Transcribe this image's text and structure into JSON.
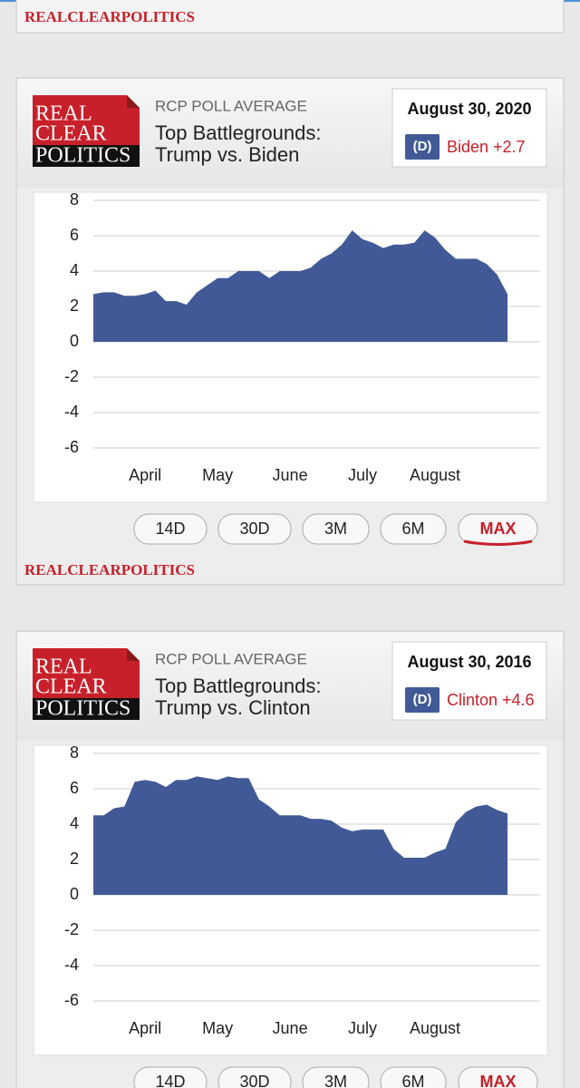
{
  "page": {
    "brand_top": "REALCLEARPOLITICS"
  },
  "chart_data": [
    {
      "type": "area",
      "logo": [
        "REAL",
        "CLEAR",
        "POLITICS"
      ],
      "kicker": "RCP POLL AVERAGE",
      "title": [
        "Top Battlegrounds:",
        "Trump vs. Biden"
      ],
      "date": "August 30, 2020",
      "party": "(D)",
      "leader": "Biden +2.7",
      "color": "#415a97",
      "categories": [
        null,
        null,
        null,
        null,
        null,
        "April",
        null,
        null,
        null,
        null,
        null,
        null,
        "May",
        null,
        null,
        null,
        null,
        null,
        null,
        "June",
        null,
        null,
        null,
        null,
        null,
        null,
        "July",
        null,
        null,
        null,
        null,
        null,
        null,
        "August",
        null,
        null,
        null,
        null,
        null,
        null,
        null
      ],
      "values": [
        2.7,
        2.8,
        2.8,
        2.6,
        2.6,
        2.7,
        2.9,
        2.3,
        2.3,
        2.1,
        2.8,
        3.2,
        3.6,
        3.6,
        4.0,
        4.0,
        4.0,
        3.6,
        4.0,
        4.0,
        4.0,
        4.2,
        4.7,
        5.0,
        5.5,
        6.3,
        5.8,
        5.6,
        5.3,
        5.5,
        5.5,
        5.6,
        6.3,
        5.9,
        5.2,
        4.7,
        4.7,
        4.7,
        4.4,
        3.8,
        2.7
      ],
      "ylim": [
        -7,
        8
      ],
      "yticks": [
        8,
        6,
        4,
        2,
        0,
        -2,
        -4,
        -6
      ],
      "grid": true,
      "buttons": [
        "14D",
        "30D",
        "3M",
        "6M",
        "MAX"
      ],
      "footer": "REALCLEARPOLITICS"
    },
    {
      "type": "area",
      "logo": [
        "REAL",
        "CLEAR",
        "POLITICS"
      ],
      "kicker": "RCP POLL AVERAGE",
      "title": [
        "Top Battlegrounds:",
        "Trump vs. Clinton"
      ],
      "date": "August 30, 2016",
      "party": "(D)",
      "leader": "Clinton +4.6",
      "color": "#415a97",
      "categories": [
        null,
        null,
        null,
        null,
        null,
        "April",
        null,
        null,
        null,
        null,
        null,
        null,
        "May",
        null,
        null,
        null,
        null,
        null,
        null,
        "June",
        null,
        null,
        null,
        null,
        null,
        null,
        "July",
        null,
        null,
        null,
        null,
        null,
        null,
        "August",
        null,
        null,
        null,
        null,
        null,
        null,
        null
      ],
      "values": [
        4.5,
        4.5,
        4.9,
        5.0,
        6.4,
        6.5,
        6.4,
        6.1,
        6.5,
        6.5,
        6.7,
        6.6,
        6.5,
        6.7,
        6.6,
        6.6,
        5.4,
        5.0,
        4.5,
        4.5,
        4.5,
        4.3,
        4.3,
        4.2,
        3.8,
        3.6,
        3.7,
        3.7,
        3.7,
        2.6,
        2.1,
        2.1,
        2.1,
        2.4,
        2.6,
        4.1,
        4.7,
        5.0,
        5.1,
        4.8,
        4.6
      ],
      "ylim": [
        -7,
        8
      ],
      "yticks": [
        8,
        6,
        4,
        2,
        0,
        -2,
        -4,
        -6
      ],
      "grid": true,
      "buttons": [
        "14D",
        "30D",
        "3M",
        "6M",
        "MAX"
      ]
    }
  ]
}
